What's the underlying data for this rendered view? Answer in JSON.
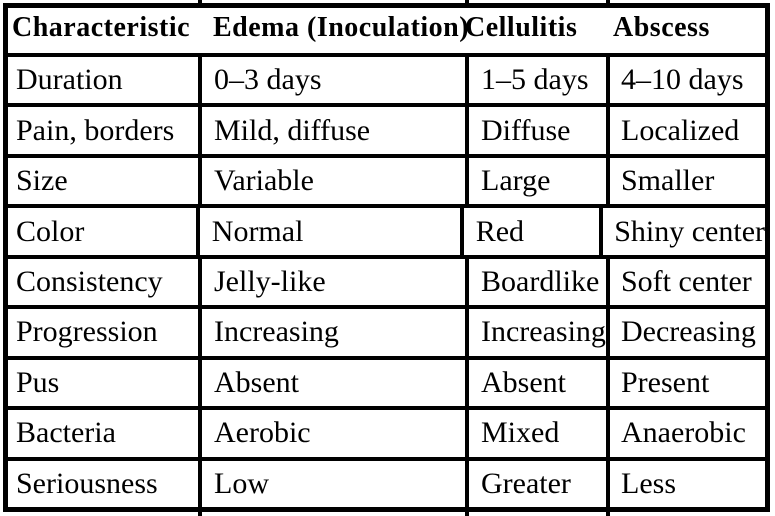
{
  "page": {
    "background_color": "#ffffff",
    "rule_color": "#000000",
    "text_color": "#000000"
  },
  "table": {
    "header": [
      "Characteristic",
      "Edema (Inoculation)",
      "Cellulitis",
      "Abscess"
    ],
    "rows": [
      [
        "Duration",
        "0–3 days",
        "1–5 days",
        "4–10 days"
      ],
      [
        "Pain, borders",
        "Mild, diffuse",
        "Diffuse",
        "Localized"
      ],
      [
        "Size",
        "Variable",
        "Large",
        "Smaller"
      ],
      [
        "Color",
        "Normal",
        "Red",
        "Shiny center"
      ],
      [
        "Consistency",
        "Jelly-like",
        "Boardlike",
        "Soft center"
      ],
      [
        "Progression",
        "Increasing",
        "Increasing",
        "Decreasing"
      ],
      [
        "Pus",
        "Absent",
        "Absent",
        "Present"
      ],
      [
        "Bacteria",
        "Aerobic",
        "Mixed",
        "Anaerobic"
      ],
      [
        "Seriousness",
        "Low",
        "Greater",
        "Less"
      ]
    ]
  }
}
